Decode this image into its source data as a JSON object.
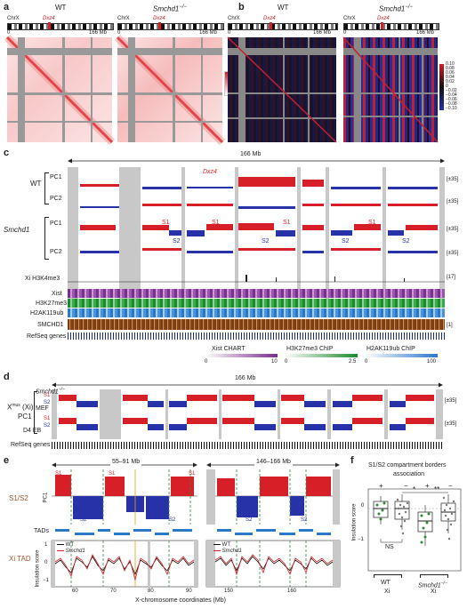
{
  "panels": {
    "a": "a",
    "b": "b",
    "c": "c",
    "d": "d",
    "e": "e",
    "f": "f"
  },
  "ideogram": {
    "chr": "ChrX",
    "locus": "Dxz4",
    "start": "0",
    "end": "166 Mb"
  },
  "genotype": {
    "wt": "WT",
    "mutant": "Smchd1",
    "mutant_sup": "−/−"
  },
  "legend_a": [
    "20",
    "15",
    "10",
    "5",
    "0"
  ],
  "legend_b": [
    "0.10",
    "0.08",
    "0.06",
    "0.04",
    "0.02",
    "0",
    "−0.02",
    "−0.04",
    "−0.06",
    "−0.08",
    "−0.10"
  ],
  "panel_c": {
    "span": "166 Mb",
    "dxz4": "Dxz4",
    "tracks": [
      "PC1",
      "PC2",
      "PC1",
      "PC2"
    ],
    "group_wt": "WT",
    "group_mut": "Smchd1",
    "scale_pc": "[±35]",
    "h3k4": "Xi H3K4me3",
    "h3k4_scale": "[17]",
    "xist": "Xist",
    "h3k27": "H3K27me3",
    "h2ak": "H2AK119ub",
    "smchd1": "SMCHD1",
    "smchd1_scale": "[1]",
    "refseq": "RefSeq genes",
    "s_labels": [
      "S1",
      "S1",
      "S1",
      "S1",
      "S1"
    ],
    "s2_labels": [
      "S2",
      "S2",
      "S2",
      "S2"
    ],
    "cbar": [
      {
        "name": "Xist CHART",
        "min": "0",
        "max": "10",
        "color": "#7b2d8e"
      },
      {
        "name": "H3K27me3 ChIP",
        "min": "0",
        "max": "2.5",
        "color": "#1e8a2e"
      },
      {
        "name": "H2AK119ub ChIP",
        "min": "0",
        "max": "100",
        "color": "#2a78c8"
      }
    ]
  },
  "panel_d": {
    "span": "166 Mb",
    "xmus": "X",
    "xmus_sup": "mus",
    "xi": "(Xi)",
    "pc1": "PC1",
    "mef": "MEF",
    "eb": "D4 EB",
    "s1": "S1",
    "s2": "S2",
    "scale": "[±35]",
    "refseq": "RefSeq genes"
  },
  "panel_e": {
    "range1": "55–91 Mb",
    "range2": "146–166 Mb",
    "row1": "S1/S2",
    "pc1": "PC1",
    "tads": "TADs",
    "row3": "Xi TAD",
    "ylabel": "Insulation score",
    "legend_wt": "WT",
    "legend_mut": "Smchd1",
    "xlabel": "X-chromosome coordinates (Mb)",
    "ticks1": [
      "60",
      "70",
      "80",
      "90"
    ],
    "ticks2": [
      "150",
      "160"
    ],
    "yticks": [
      "1",
      "0",
      "−1"
    ],
    "s1": "S1",
    "s2": "S2"
  },
  "panel_f": {
    "title1": "S1/S2 compartment borders",
    "title2": "association",
    "signs": [
      "+",
      "−",
      "+",
      "−"
    ],
    "ylabel": "Insulation score",
    "yticks": [
      "0",
      "−1"
    ],
    "sig1": "*",
    "sig2": "**",
    "ns": "NS",
    "g1": "WT",
    "g1b": "Xi",
    "g2": "Smchd1",
    "g2b": "Xi"
  }
}
